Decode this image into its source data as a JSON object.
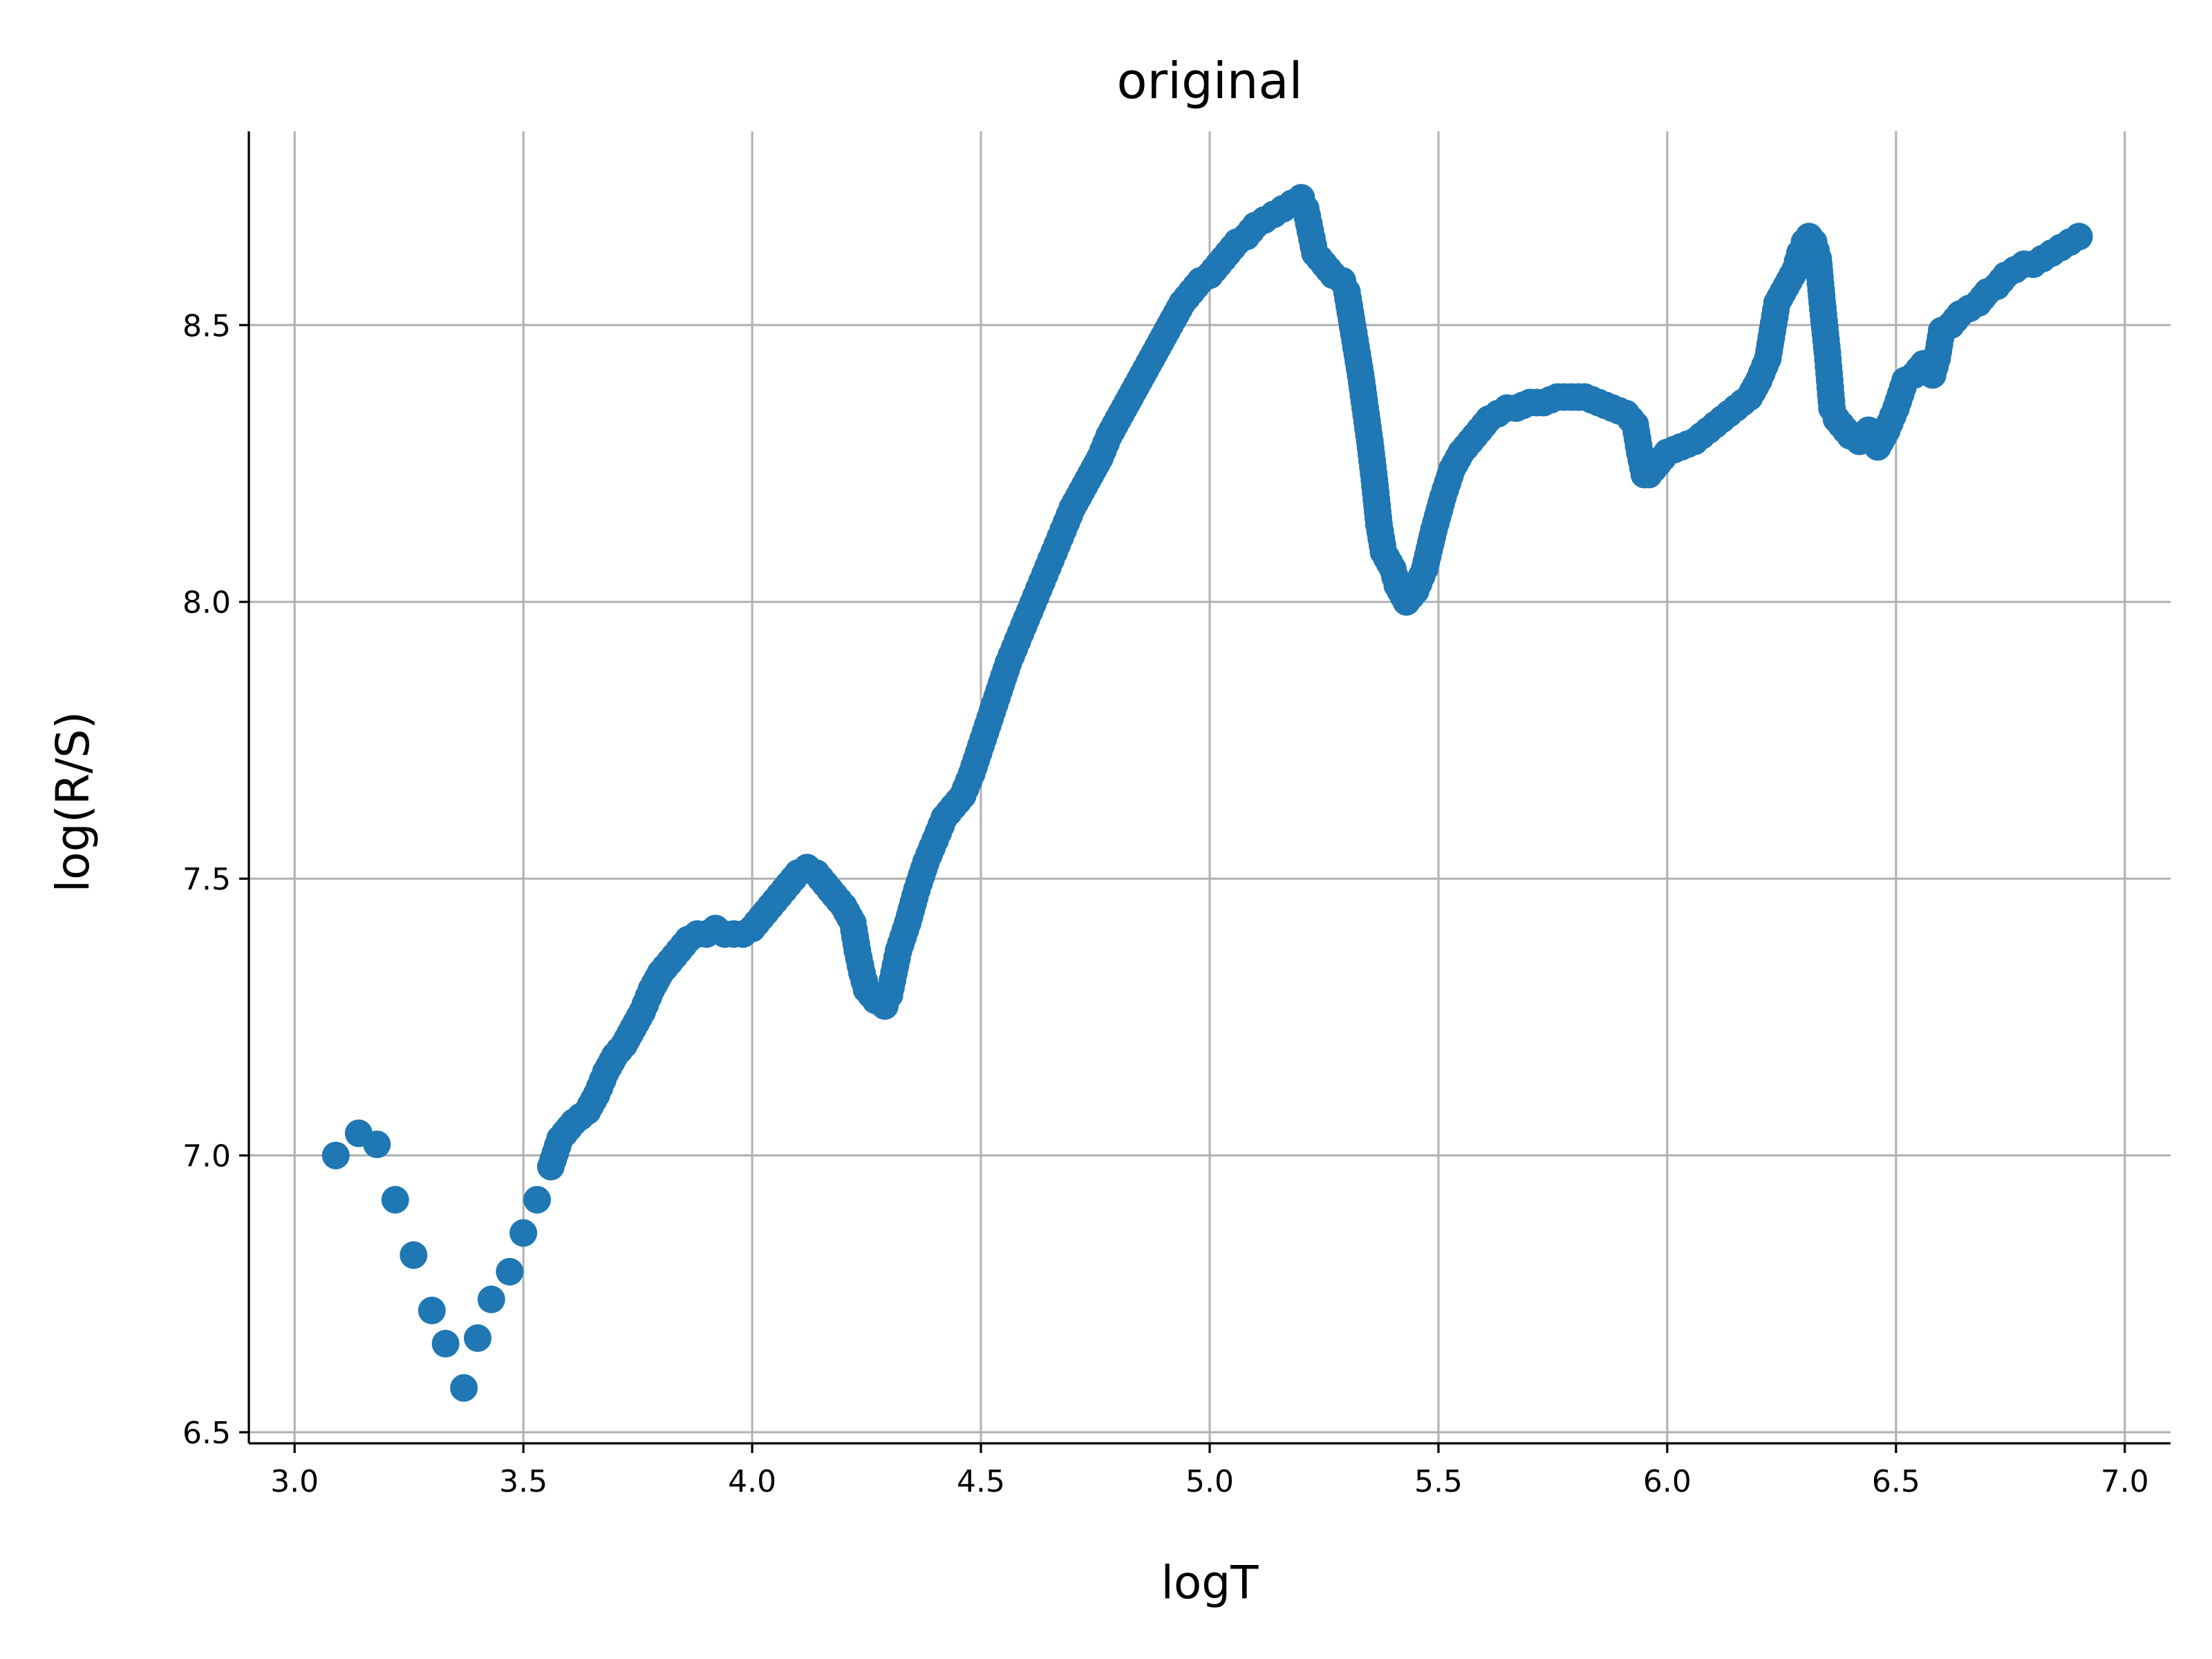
{
  "chart_data": {
    "type": "scatter",
    "title": "original",
    "xlabel": "logT",
    "ylabel": "log(R/S)",
    "xlim": [
      2.9,
      7.1
    ],
    "ylim": [
      6.48,
      8.85
    ],
    "xticks": [
      3.0,
      3.5,
      4.0,
      4.5,
      5.0,
      5.5,
      6.0,
      6.5,
      7.0
    ],
    "xtick_labels": [
      "3.0",
      "3.5",
      "4.0",
      "4.5",
      "5.0",
      "5.5",
      "6.0",
      "6.5",
      "7.0"
    ],
    "yticks": [
      6.5,
      7.0,
      7.5,
      8.0,
      8.5
    ],
    "ytick_labels": [
      "6.5",
      "7.0",
      "7.5",
      "8.0",
      "8.5"
    ],
    "grid": true,
    "marker_color": "#1f77b4",
    "series": [
      {
        "points": [
          [
            3.09,
            7.0
          ],
          [
            3.14,
            7.04
          ],
          [
            3.18,
            7.02
          ],
          [
            3.22,
            6.92
          ],
          [
            3.26,
            6.82
          ],
          [
            3.3,
            6.72
          ],
          [
            3.33,
            6.66
          ],
          [
            3.37,
            6.58
          ],
          [
            3.4,
            6.67
          ],
          [
            3.43,
            6.74
          ],
          [
            3.47,
            6.79
          ],
          [
            3.5,
            6.86
          ],
          [
            3.53,
            6.92
          ],
          [
            3.56,
            6.98
          ],
          [
            3.58,
            7.03
          ],
          [
            3.61,
            7.06
          ],
          [
            3.64,
            7.08
          ],
          [
            3.66,
            7.11
          ],
          [
            3.68,
            7.15
          ],
          [
            3.7,
            7.18
          ],
          [
            3.72,
            7.2
          ],
          [
            3.74,
            7.23
          ],
          [
            3.76,
            7.26
          ],
          [
            3.78,
            7.3
          ],
          [
            3.8,
            7.33
          ],
          [
            3.82,
            7.35
          ],
          [
            3.84,
            7.37
          ],
          [
            3.86,
            7.39
          ],
          [
            3.88,
            7.4
          ],
          [
            3.9,
            7.4
          ],
          [
            3.92,
            7.41
          ],
          [
            3.94,
            7.4
          ],
          [
            3.96,
            7.4
          ],
          [
            3.98,
            7.4
          ],
          [
            4.0,
            7.41
          ],
          [
            4.02,
            7.43
          ],
          [
            4.04,
            7.45
          ],
          [
            4.06,
            7.47
          ],
          [
            4.08,
            7.49
          ],
          [
            4.1,
            7.51
          ],
          [
            4.12,
            7.52
          ],
          [
            4.14,
            7.51
          ],
          [
            4.16,
            7.49
          ],
          [
            4.18,
            7.47
          ],
          [
            4.2,
            7.45
          ],
          [
            4.22,
            7.42
          ],
          [
            4.23,
            7.37
          ],
          [
            4.24,
            7.33
          ],
          [
            4.25,
            7.3
          ],
          [
            4.27,
            7.28
          ],
          [
            4.29,
            7.27
          ],
          [
            4.3,
            7.29
          ],
          [
            4.31,
            7.33
          ],
          [
            4.32,
            7.37
          ],
          [
            4.34,
            7.42
          ],
          [
            4.36,
            7.48
          ],
          [
            4.38,
            7.53
          ],
          [
            4.4,
            7.57
          ],
          [
            4.42,
            7.61
          ],
          [
            4.44,
            7.63
          ],
          [
            4.46,
            7.65
          ],
          [
            4.48,
            7.69
          ],
          [
            4.5,
            7.74
          ],
          [
            4.52,
            7.79
          ],
          [
            4.54,
            7.84
          ],
          [
            4.56,
            7.89
          ],
          [
            4.58,
            7.93
          ],
          [
            4.6,
            7.97
          ],
          [
            4.62,
            8.01
          ],
          [
            4.64,
            8.05
          ],
          [
            4.66,
            8.09
          ],
          [
            4.68,
            8.13
          ],
          [
            4.7,
            8.17
          ],
          [
            4.72,
            8.2
          ],
          [
            4.74,
            8.23
          ],
          [
            4.76,
            8.26
          ],
          [
            4.78,
            8.3
          ],
          [
            4.8,
            8.33
          ],
          [
            4.82,
            8.36
          ],
          [
            4.84,
            8.39
          ],
          [
            4.86,
            8.42
          ],
          [
            4.88,
            8.45
          ],
          [
            4.9,
            8.48
          ],
          [
            4.92,
            8.51
          ],
          [
            4.94,
            8.54
          ],
          [
            4.96,
            8.56
          ],
          [
            4.98,
            8.58
          ],
          [
            5.0,
            8.59
          ],
          [
            5.02,
            8.61
          ],
          [
            5.04,
            8.63
          ],
          [
            5.06,
            8.65
          ],
          [
            5.08,
            8.66
          ],
          [
            5.1,
            8.68
          ],
          [
            5.12,
            8.69
          ],
          [
            5.14,
            8.7
          ],
          [
            5.16,
            8.71
          ],
          [
            5.18,
            8.72
          ],
          [
            5.2,
            8.73
          ],
          [
            5.21,
            8.71
          ],
          [
            5.22,
            8.67
          ],
          [
            5.23,
            8.63
          ],
          [
            5.25,
            8.61
          ],
          [
            5.27,
            8.59
          ],
          [
            5.29,
            8.58
          ],
          [
            5.3,
            8.56
          ],
          [
            5.31,
            8.51
          ],
          [
            5.32,
            8.46
          ],
          [
            5.33,
            8.41
          ],
          [
            5.34,
            8.35
          ],
          [
            5.35,
            8.29
          ],
          [
            5.36,
            8.22
          ],
          [
            5.37,
            8.14
          ],
          [
            5.38,
            8.09
          ],
          [
            5.4,
            8.06
          ],
          [
            5.41,
            8.03
          ],
          [
            5.43,
            8.0
          ],
          [
            5.45,
            8.02
          ],
          [
            5.47,
            8.06
          ],
          [
            5.49,
            8.13
          ],
          [
            5.51,
            8.19
          ],
          [
            5.53,
            8.24
          ],
          [
            5.55,
            8.27
          ],
          [
            5.57,
            8.29
          ],
          [
            5.59,
            8.31
          ],
          [
            5.61,
            8.33
          ],
          [
            5.63,
            8.34
          ],
          [
            5.65,
            8.35
          ],
          [
            5.67,
            8.35
          ],
          [
            5.7,
            8.36
          ],
          [
            5.73,
            8.36
          ],
          [
            5.76,
            8.37
          ],
          [
            5.79,
            8.37
          ],
          [
            5.82,
            8.37
          ],
          [
            5.85,
            8.36
          ],
          [
            5.88,
            8.35
          ],
          [
            5.91,
            8.34
          ],
          [
            5.93,
            8.32
          ],
          [
            5.94,
            8.27
          ],
          [
            5.95,
            8.23
          ],
          [
            5.96,
            8.23
          ],
          [
            5.98,
            8.25
          ],
          [
            6.0,
            8.27
          ],
          [
            6.03,
            8.28
          ],
          [
            6.06,
            8.29
          ],
          [
            6.09,
            8.31
          ],
          [
            6.12,
            8.33
          ],
          [
            6.15,
            8.35
          ],
          [
            6.18,
            8.37
          ],
          [
            6.2,
            8.4
          ],
          [
            6.22,
            8.44
          ],
          [
            6.23,
            8.49
          ],
          [
            6.24,
            8.54
          ],
          [
            6.26,
            8.57
          ],
          [
            6.28,
            8.6
          ],
          [
            6.29,
            8.63
          ],
          [
            6.3,
            8.65
          ],
          [
            6.31,
            8.66
          ],
          [
            6.32,
            8.65
          ],
          [
            6.33,
            8.62
          ],
          [
            6.34,
            8.53
          ],
          [
            6.35,
            8.45
          ],
          [
            6.36,
            8.35
          ],
          [
            6.37,
            8.33
          ],
          [
            6.38,
            8.32
          ],
          [
            6.4,
            8.3
          ],
          [
            6.42,
            8.29
          ],
          [
            6.44,
            8.31
          ],
          [
            6.46,
            8.28
          ],
          [
            6.48,
            8.31
          ],
          [
            6.5,
            8.35
          ],
          [
            6.52,
            8.4
          ],
          [
            6.54,
            8.41
          ],
          [
            6.56,
            8.43
          ],
          [
            6.58,
            8.41
          ],
          [
            6.59,
            8.44
          ],
          [
            6.6,
            8.49
          ],
          [
            6.62,
            8.5
          ],
          [
            6.64,
            8.52
          ],
          [
            6.66,
            8.53
          ],
          [
            6.68,
            8.54
          ],
          [
            6.7,
            8.56
          ],
          [
            6.72,
            8.57
          ],
          [
            6.74,
            8.59
          ],
          [
            6.76,
            8.6
          ],
          [
            6.78,
            8.61
          ],
          [
            6.8,
            8.61
          ],
          [
            6.82,
            8.62
          ],
          [
            6.84,
            8.63
          ],
          [
            6.86,
            8.64
          ],
          [
            6.88,
            8.65
          ],
          [
            6.9,
            8.66
          ]
        ]
      }
    ]
  }
}
